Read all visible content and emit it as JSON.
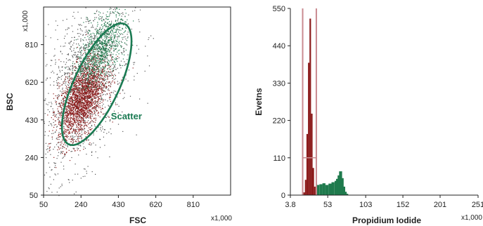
{
  "colors": {
    "red": "#8b1a1a",
    "green": "#1f7a4d",
    "gray": "#555555",
    "gate_green": "#1a7a52",
    "gate_pink": "#c98a90",
    "axis": "#222222"
  },
  "chart_data": [
    {
      "type": "scatter",
      "title": "",
      "xlabel": "FSC",
      "ylabel": "BSC",
      "x_unit": "x1,000",
      "y_unit": "x1,000",
      "xlim": [
        50,
        1000
      ],
      "ylim": [
        50,
        1000
      ],
      "x_ticks": [
        "50",
        "240",
        "430",
        "620",
        "810"
      ],
      "y_ticks": [
        "50",
        "240",
        "430",
        "620",
        "810"
      ],
      "gate": {
        "label": "Scatter",
        "center": [
          320,
          610
        ],
        "semi_axis_major": 335,
        "semi_axis_minor": 115,
        "tilt_deg": 65
      },
      "series": [
        {
          "color": "red",
          "n": 2200,
          "center": [
            245,
            540
          ],
          "spread": [
            60,
            85
          ]
        },
        {
          "color": "green",
          "n": 900,
          "center": [
            340,
            790
          ],
          "spread": [
            60,
            75
          ]
        },
        {
          "color": "gray",
          "n": 1600,
          "center": [
            250,
            600
          ],
          "spread": [
            120,
            190
          ]
        }
      ]
    },
    {
      "type": "bar",
      "title": "",
      "xlabel": "Propidium Iodide",
      "ylabel": "Evetns",
      "x_unit": "x1,000",
      "xlim": [
        3.8,
        251
      ],
      "ylim": [
        0,
        550
      ],
      "x_ticks": [
        "3.8",
        "53",
        "103",
        "152",
        "201",
        "251"
      ],
      "y_ticks": [
        "0",
        "110",
        "220",
        "330",
        "440",
        "550"
      ],
      "gate": {
        "x_range": [
          20,
          38
        ],
        "marker_y": 110
      },
      "series": [
        {
          "color": "red",
          "x": [
            22,
            24,
            26,
            28,
            30,
            32,
            34,
            36,
            38
          ],
          "values": [
            8,
            45,
            180,
            390,
            520,
            240,
            80,
            25,
            10
          ]
        },
        {
          "color": "green",
          "x": [
            40,
            44,
            48,
            52,
            56,
            60,
            64,
            66,
            68,
            70,
            72,
            74,
            76,
            78
          ],
          "values": [
            30,
            32,
            35,
            30,
            34,
            38,
            42,
            48,
            58,
            70,
            50,
            25,
            10,
            4
          ]
        }
      ]
    }
  ]
}
